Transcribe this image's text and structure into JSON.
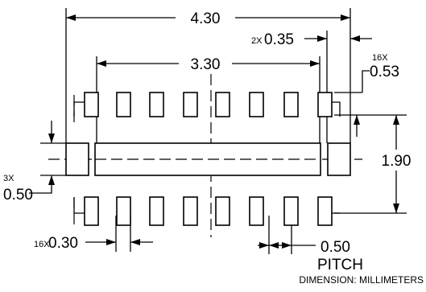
{
  "drawing": {
    "overall_width": "4.30",
    "inner_width": "3.30",
    "end_pad_width_qty": "2X",
    "end_pad_width": "0.35",
    "pad_length_qty": "16X",
    "pad_length": "0.53",
    "row_span": "1.90",
    "end_gap_qty": "3X",
    "end_gap": "0.50",
    "pad_width_qty": "16X",
    "pad_width": "0.30",
    "pitch_value": "0.50",
    "pitch_label": "PITCH",
    "units_note": "DIMENSION: MILLIMETERS"
  },
  "pads": {
    "top_row_count": 8,
    "bottom_row_count": 8,
    "end_pads": 2
  }
}
